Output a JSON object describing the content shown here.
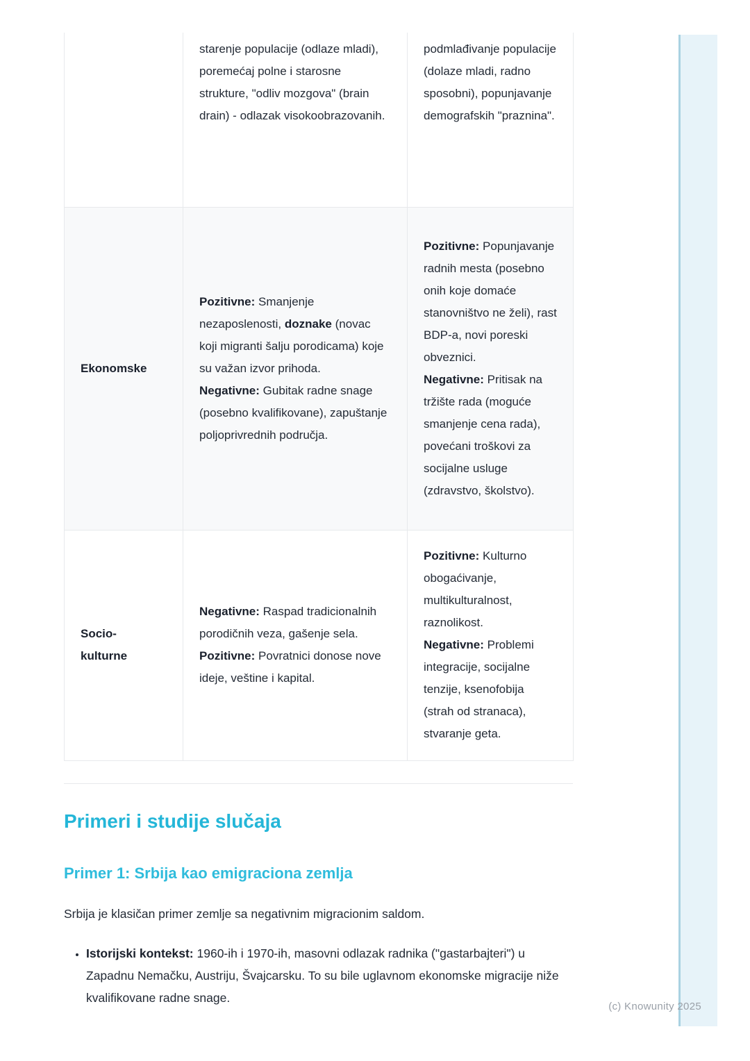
{
  "colors": {
    "heading_accent": "#24b6d8",
    "subheading_accent": "#2fbcdc",
    "body_text": "#242b36",
    "bold_text": "#1a202c",
    "muted_text": "#9aa0a8",
    "table_border": "#e7e9ec",
    "row_alt_bg": "#f8f9fa",
    "edge_strip_fill": "#e7f3f9",
    "edge_strip_line": "#a9d2e2"
  },
  "table": {
    "rows": [
      {
        "category_lines": [],
        "emigration": [
          {
            "t": "starenje populacije (odlaze mladi), poremećaj polne i starosne strukture, \"odliv mozgova\" (brain drain) - odlazak visokoobrazovanih."
          }
        ],
        "immigration": [
          {
            "t": "podmlađivanje populacije (dolaze mladi, radno sposobni), popunjavanje demografskih \"praznina\"."
          }
        ]
      },
      {
        "category_lines": [
          "Ekonomske"
        ],
        "emigration": [
          {
            "b": "Pozitivne:"
          },
          {
            "t": " Smanjenje nezaposlenosti, "
          },
          {
            "b": "doznake"
          },
          {
            "t": " (novac koji migranti šalju porodicama) koje su važan izvor prihoda."
          },
          {
            "br": true
          },
          {
            "b": "Negativne:"
          },
          {
            "t": " Gubitak radne snage (posebno kvalifikovane), zapuštanje poljoprivrednih područja."
          }
        ],
        "immigration": [
          {
            "b": "Pozitivne:"
          },
          {
            "t": " Popunjavanje radnih mesta (posebno onih koje domaće stanovništvo ne želi), rast BDP-a, novi poreski obveznici."
          },
          {
            "br": true
          },
          {
            "b": "Negativne:"
          },
          {
            "t": " Pritisak na tržište rada (moguće smanjenje cena rada), povećani troškovi za socijalne usluge (zdravstvo, školstvo)."
          }
        ]
      },
      {
        "category_lines": [
          "Socio-",
          "kulturne"
        ],
        "emigration": [
          {
            "b": "Negativne:"
          },
          {
            "t": " Raspad tradicionalnih porodičnih veza, gašenje sela."
          },
          {
            "br": true
          },
          {
            "b": "Pozitivne:"
          },
          {
            "t": " Povratnici donose nove ideje, veštine i kapital."
          }
        ],
        "immigration": [
          {
            "b": "Pozitivne:"
          },
          {
            "t": " Kulturno obogaćivanje, multikulturalnost, raznolikost."
          },
          {
            "br": true
          },
          {
            "b": "Negativne:"
          },
          {
            "t": " Problemi integracije, socijalne tenzije, ksenofobija (strah od stranaca), stvaranje geta."
          }
        ]
      }
    ]
  },
  "sections": {
    "examples_heading": "Primeri i studije slučaja",
    "example1_heading": "Primer 1: Srbija kao emigraciona zemlja",
    "example1_intro": "Srbija je klasičan primer zemlje sa negativnim migracionim saldom.",
    "example1_bullets": [
      {
        "bold": "Istorijski kontekst:",
        "text": " 1960-ih i 1970-ih, masovni odlazak radnika (\"gastarbajteri\") u Zapadnu Nemačku, Austriju, Švajcarsku. To su bile uglavnom ekonomske migracije niže kvalifikovane radne snage."
      }
    ]
  },
  "footer": {
    "copyright": "(c) Knowunity 2025"
  }
}
